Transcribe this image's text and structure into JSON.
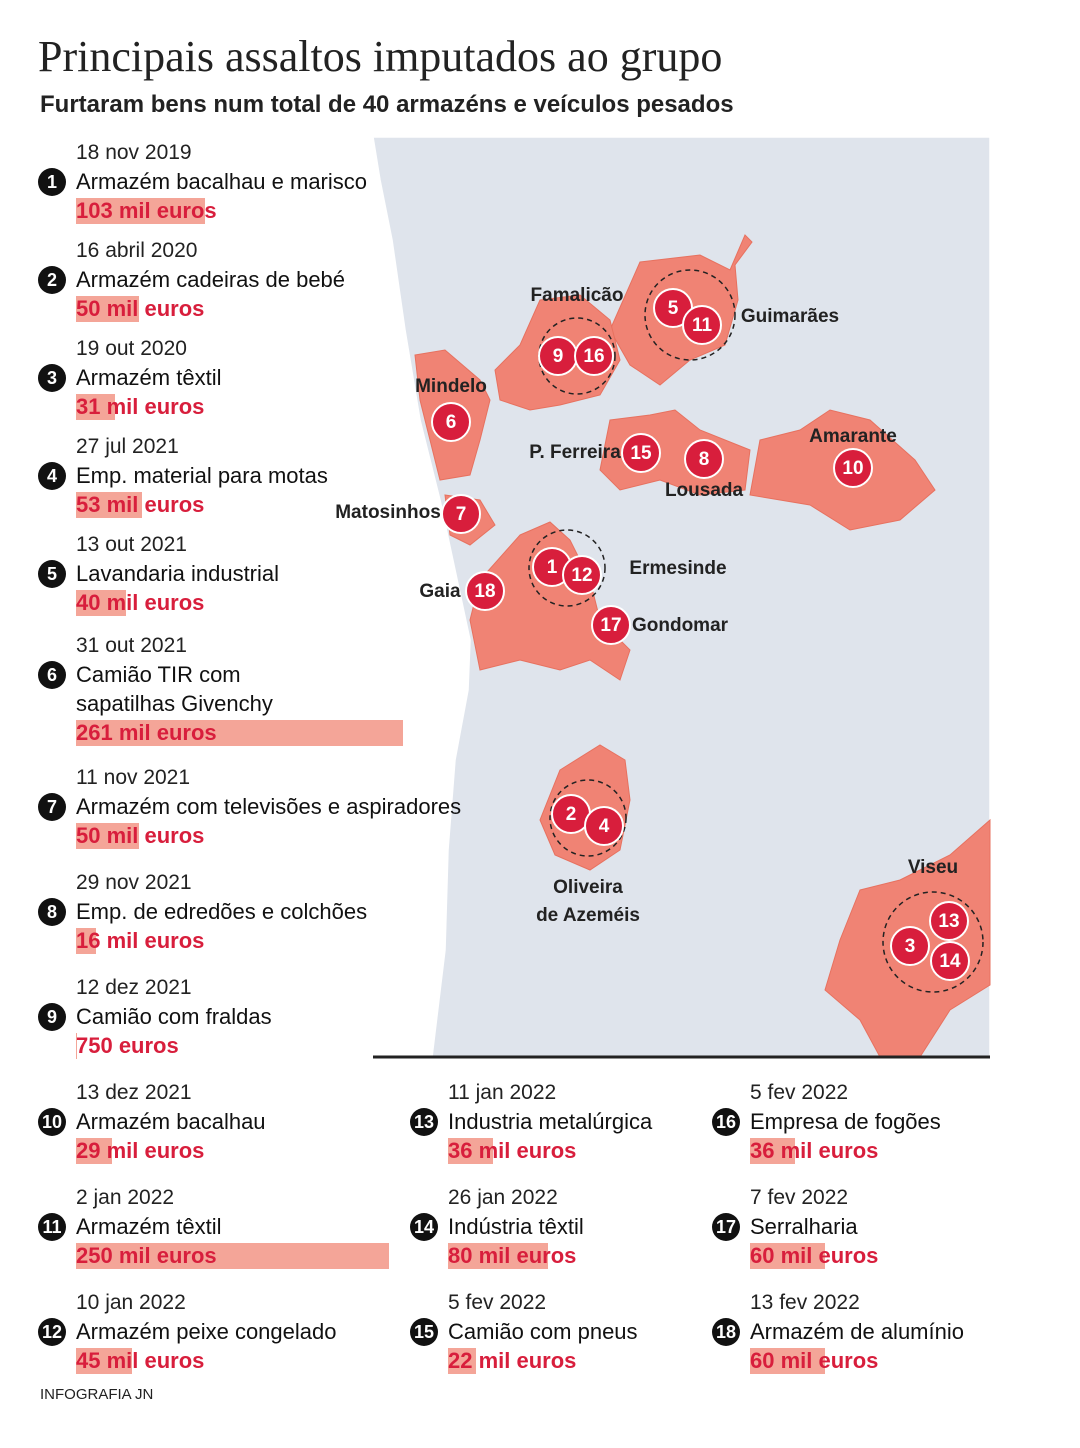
{
  "header": {
    "title": "Principais assaltos imputados ao grupo",
    "subtitle": "Furtaram bens num total de 40 armazéns e veículos pesados"
  },
  "items": [
    {
      "number": 1,
      "date": "18 nov 2019",
      "description": [
        "Armazém bacalhau e marisco"
      ],
      "amount": 103000,
      "amount_label": "103 mil euros"
    },
    {
      "number": 2,
      "date": "16 abril 2020",
      "description": [
        "Armazém cadeiras de bebé"
      ],
      "amount": 50000,
      "amount_label": "50 mil euros"
    },
    {
      "number": 3,
      "date": "19 out 2020",
      "description": [
        "Armazém têxtil"
      ],
      "amount": 31000,
      "amount_label": "31 mil euros"
    },
    {
      "number": 4,
      "date": "27 jul 2021",
      "description": [
        "Emp. material para motas"
      ],
      "amount": 53000,
      "amount_label": "53 mil euros"
    },
    {
      "number": 5,
      "date": "13 out 2021",
      "description": [
        "Lavandaria industrial"
      ],
      "amount": 40000,
      "amount_label": "40 mil euros"
    },
    {
      "number": 6,
      "date": "31 out 2021",
      "description": [
        "Camião TIR com",
        "sapatilhas Givenchy"
      ],
      "amount": 261000,
      "amount_label": "261 mil euros"
    },
    {
      "number": 7,
      "date": "11 nov 2021",
      "description": [
        "Armazém com televisões e aspiradores"
      ],
      "amount": 50000,
      "amount_label": "50 mil euros"
    },
    {
      "number": 8,
      "date": "29 nov 2021",
      "description": [
        "Emp. de edredões e colchões"
      ],
      "amount": 16000,
      "amount_label": "16 mil euros"
    },
    {
      "number": 9,
      "date": "12 dez 2021",
      "description": [
        "Camião com fraldas"
      ],
      "amount": 750,
      "amount_label": "750 euros"
    },
    {
      "number": 10,
      "date": "13 dez 2021",
      "description": [
        "Armazém bacalhau"
      ],
      "amount": 29000,
      "amount_label": "29 mil euros"
    },
    {
      "number": 11,
      "date": "2 jan 2022",
      "description": [
        "Armazém têxtil"
      ],
      "amount": 250000,
      "amount_label": "250 mil euros"
    },
    {
      "number": 12,
      "date": "10 jan 2022",
      "description": [
        "Armazém peixe congelado"
      ],
      "amount": 45000,
      "amount_label": "45 mil euros"
    },
    {
      "number": 13,
      "date": "11 jan 2022",
      "description": [
        "Industria metalúrgica"
      ],
      "amount": 36000,
      "amount_label": "36 mil euros"
    },
    {
      "number": 14,
      "date": "26 jan 2022",
      "description": [
        "Indústria têxtil"
      ],
      "amount": 80000,
      "amount_label": "80 mil euros"
    },
    {
      "number": 15,
      "date": "5 fev 2022",
      "description": [
        "Camião com pneus"
      ],
      "amount": 22000,
      "amount_label": "22 mil euros"
    },
    {
      "number": 16,
      "date": "5 fev 2022",
      "description": [
        "Empresa de fogões"
      ],
      "amount": 36000,
      "amount_label": "36 mil euros"
    },
    {
      "number": 17,
      "date": "7 fev 2022",
      "description": [
        "Serralharia"
      ],
      "amount": 60000,
      "amount_label": "60 mil euros"
    },
    {
      "number": 18,
      "date": "13 fev 2022",
      "description": [
        "Armazém de alumínio"
      ],
      "amount": 60000,
      "amount_label": "60 mil euros"
    }
  ],
  "map": {
    "places": [
      {
        "lines": [
          "Famalicão"
        ]
      },
      {
        "lines": [
          "Guimarães"
        ]
      },
      {
        "lines": [
          "Mindelo"
        ]
      },
      {
        "lines": [
          "P. Ferreira"
        ]
      },
      {
        "lines": [
          "Lousada"
        ]
      },
      {
        "lines": [
          "Amarante"
        ]
      },
      {
        "lines": [
          "Matosinhos"
        ]
      },
      {
        "lines": [
          "Ermesinde"
        ]
      },
      {
        "lines": [
          "Gaia"
        ]
      },
      {
        "lines": [
          "Gondomar"
        ]
      },
      {
        "lines": [
          "Oliveira",
          "de Azeméis"
        ]
      },
      {
        "lines": [
          "Viseu"
        ]
      }
    ],
    "markers": [
      5,
      11,
      9,
      16,
      6,
      15,
      8,
      10,
      7,
      1,
      12,
      18,
      17,
      2,
      4,
      13,
      3,
      14
    ]
  },
  "credit": "INFOGRAFIA JN"
}
